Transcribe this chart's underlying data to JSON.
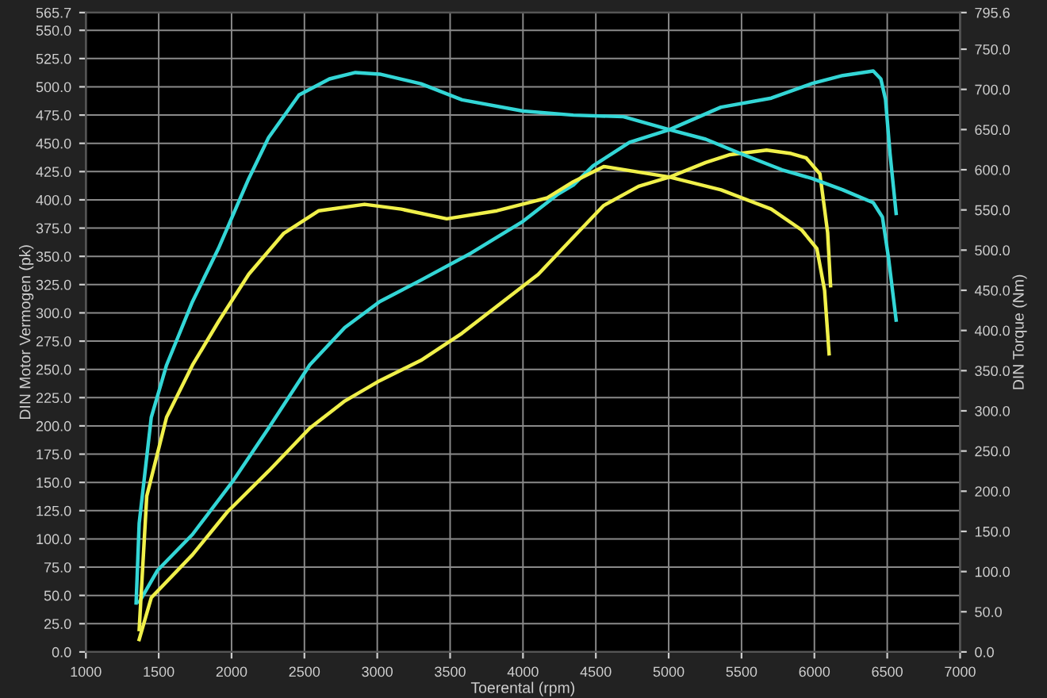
{
  "chart_data": {
    "type": "line",
    "xlabel": "Toerental (rpm)",
    "ylabel": "DIN Motor Vermogen (pk)",
    "y2label": "DIN Torque (Nm)",
    "xlim": [
      1000,
      7000
    ],
    "xticks": [
      1000,
      1500,
      2000,
      2500,
      3000,
      3500,
      4000,
      4500,
      5000,
      5500,
      6000,
      6500,
      7000
    ],
    "ylim": [
      0,
      565.7
    ],
    "yticks": [
      {
        "value": 0,
        "label": "0.0"
      },
      {
        "value": 25,
        "label": "25.0"
      },
      {
        "value": 50,
        "label": "50.0"
      },
      {
        "value": 75,
        "label": "75.0"
      },
      {
        "value": 100,
        "label": "100.0"
      },
      {
        "value": 125,
        "label": "125.0"
      },
      {
        "value": 150,
        "label": "150.0"
      },
      {
        "value": 175,
        "label": "175.0"
      },
      {
        "value": 200,
        "label": "200.0"
      },
      {
        "value": 225,
        "label": "225.0"
      },
      {
        "value": 250,
        "label": "250.0"
      },
      {
        "value": 275,
        "label": "275.0"
      },
      {
        "value": 300,
        "label": "300.0"
      },
      {
        "value": 325,
        "label": "325.0"
      },
      {
        "value": 350,
        "label": "350.0"
      },
      {
        "value": 375,
        "label": "375.0"
      },
      {
        "value": 400,
        "label": "400.0"
      },
      {
        "value": 425,
        "label": "425.0"
      },
      {
        "value": 450,
        "label": "450.0"
      },
      {
        "value": 475,
        "label": "475.0"
      },
      {
        "value": 500,
        "label": "500.0"
      },
      {
        "value": 525,
        "label": "525.0"
      },
      {
        "value": 550,
        "label": "550.0"
      },
      565.7
    ],
    "y2lim": [
      0,
      795.6
    ],
    "y2ticks": [
      {
        "value": 0,
        "label": "0.0"
      },
      {
        "value": 50,
        "label": "50.0"
      },
      {
        "value": 100,
        "label": "100.0"
      },
      {
        "value": 150,
        "label": "150.0"
      },
      {
        "value": 200,
        "label": "200.0"
      },
      {
        "value": 250,
        "label": "250.0"
      },
      {
        "value": 300,
        "label": "300.0"
      },
      {
        "value": 350,
        "label": "350.0"
      },
      {
        "value": 400,
        "label": "400.0"
      },
      {
        "value": 450,
        "label": "450.0"
      },
      {
        "value": 500,
        "label": "500.0"
      },
      {
        "value": 550,
        "label": "550.0"
      },
      {
        "value": 600,
        "label": "600.0"
      },
      {
        "value": 650,
        "label": "650.0"
      },
      {
        "value": 700,
        "label": "700.0"
      },
      {
        "value": 750,
        "label": "750.0"
      },
      795.6
    ],
    "grid": true,
    "legend": false,
    "marker": "none",
    "line_style": "solid",
    "series": [
      {
        "color": "#33d6d6",
        "x": [
          1366,
          1491,
          1732,
          2014,
          2254,
          2537,
          2777,
          3017,
          3300,
          3645,
          4000,
          4240,
          4345,
          4481,
          4732,
          5003,
          5359,
          5704,
          5986,
          6195,
          6404,
          6456,
          6488,
          6519,
          6561
        ],
        "values": [
          44,
          72,
          104,
          152,
          198,
          254,
          287,
          310,
          329,
          353,
          381,
          405,
          413,
          430,
          451,
          462,
          482,
          490,
          503,
          510,
          514,
          507,
          489,
          441,
          388
        ]
      },
      {
        "color": "#33d6d6",
        "axis": "y2",
        "x": [
          1345,
          1366,
          1449,
          1554,
          1732,
          1910,
          2118,
          2254,
          2463,
          2672,
          2850,
          3017,
          3300,
          3582,
          4000,
          4345,
          4690,
          5003,
          5254,
          5495,
          5777,
          5986,
          6195,
          6404,
          6467,
          6509,
          6561
        ],
        "values": [
          61,
          160,
          292,
          357,
          436,
          502,
          589,
          640,
          693,
          713,
          721,
          719,
          707,
          687,
          673,
          668,
          666,
          650,
          638,
          620,
          600,
          589,
          575,
          559,
          541,
          490,
          413
        ]
      },
      {
        "color": "#f0f04a",
        "x": [
          1366,
          1449,
          1732,
          1972,
          2254,
          2537,
          2777,
          3017,
          3300,
          3582,
          3822,
          4104,
          4376,
          4554,
          4794,
          5003,
          5254,
          5422,
          5672,
          5840,
          5944,
          6038,
          6091,
          6111
        ],
        "values": [
          11,
          48,
          86,
          124,
          160,
          198,
          222,
          240,
          258,
          282,
          306,
          334,
          371,
          395,
          412,
          420,
          433,
          440,
          444,
          441,
          437,
          423,
          371,
          324
        ]
      },
      {
        "color": "#f0f04a",
        "axis": "y2",
        "x": [
          1366,
          1418,
          1554,
          1732,
          1910,
          2118,
          2359,
          2599,
          2913,
          3164,
          3477,
          3822,
          4167,
          4345,
          4554,
          5003,
          5359,
          5704,
          5913,
          6017,
          6070,
          6101
        ],
        "values": [
          28,
          194,
          292,
          357,
          411,
          470,
          521,
          549,
          557,
          551,
          539,
          549,
          565,
          585,
          604,
          591,
          575,
          551,
          525,
          502,
          450,
          371
        ]
      }
    ]
  }
}
